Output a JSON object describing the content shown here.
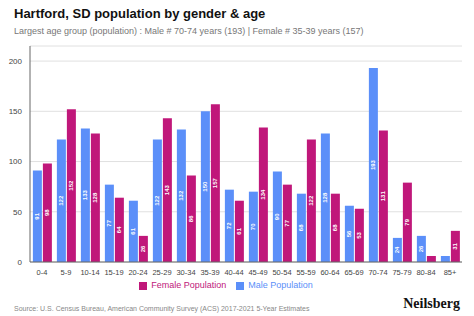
{
  "chart_data": {
    "type": "bar",
    "title": "Hartford, SD population by gender & age",
    "subtitle": "Largest age group (population) : Male # 70-74 years (193) | Female # 35-39 years (157)",
    "annotations": [
      "Source: U.S. Census Bureau, American Community Survey (ACS) 2017-2021 5-Year Estimates",
      "Neilsberg"
    ],
    "categories": [
      "0-4",
      "5-9",
      "10-14",
      "15-19",
      "20-24",
      "25-29",
      "30-34",
      "35-39",
      "40-44",
      "45-49",
      "50-54",
      "55-59",
      "60-64",
      "65-69",
      "70-74",
      "75-79",
      "80-84",
      "85+"
    ],
    "series": [
      {
        "name": "Male Population",
        "color": "#5B8FF9",
        "values": [
          91,
          122,
          133,
          77,
          61,
          122,
          132,
          150,
          72,
          70,
          90,
          68,
          128,
          56,
          193,
          24,
          26,
          6
        ],
        "value_labels": [
          "91",
          "122",
          "133",
          "77",
          "61",
          "122",
          "132",
          "150",
          "72",
          "70",
          "90",
          "68",
          "128",
          "56",
          "193",
          "24",
          "26",
          null
        ]
      },
      {
        "name": "Female Population",
        "color": "#C0177A",
        "values": [
          98,
          152,
          128,
          64,
          26,
          143,
          86,
          157,
          61,
          134,
          77,
          122,
          68,
          53,
          131,
          79,
          6,
          31
        ],
        "value_labels": [
          "98",
          "152",
          "128",
          "64",
          "26",
          "143",
          "86",
          "157",
          "61",
          "134",
          "77",
          "122",
          "68",
          "53",
          "131",
          "79",
          null,
          "31"
        ]
      }
    ],
    "ylim": [
      0,
      215
    ],
    "yticks": [
      0,
      50,
      100,
      150,
      200
    ],
    "grid": true,
    "legend": "bottom",
    "data_labels": true
  }
}
